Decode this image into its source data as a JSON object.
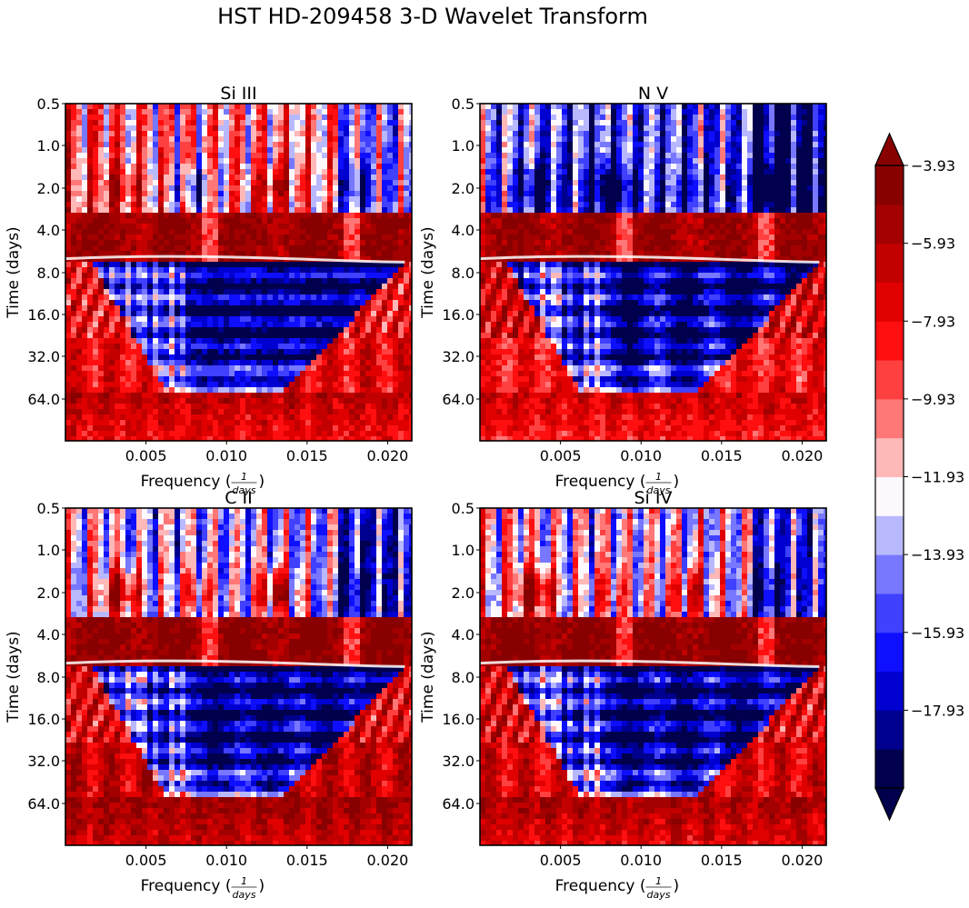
{
  "chart_data": {
    "type": "heatmap",
    "title": "HST HD-209458 3-D Wavelet Transform",
    "panels": [
      {
        "title": "Si III",
        "variant": "siiii"
      },
      {
        "title": "N V",
        "variant": "nv"
      },
      {
        "title": "C II",
        "variant": "cii"
      },
      {
        "title": "Si IV",
        "variant": "siiv"
      }
    ],
    "xlabel_prefix": "Frequency (",
    "xlabel_num": "1",
    "xlabel_den": "days",
    "xlabel_suffix": ")",
    "ylabel": "Time (days)",
    "x_ticks": [
      0.005,
      0.01,
      0.015,
      0.02
    ],
    "x_tick_labels": [
      "0.005",
      "0.010",
      "0.015",
      "0.020"
    ],
    "xlim": [
      0.0,
      0.0215
    ],
    "y_ticks": [
      "0.5",
      "1.0",
      "2.0",
      "4.0",
      "8.0",
      "16.0",
      "32.0",
      "64.0"
    ],
    "y_scale": "log2",
    "colorbar": {
      "levels": [
        -19.93,
        -18.93,
        -17.93,
        -16.93,
        -15.93,
        -14.93,
        -13.93,
        -12.93,
        -11.93,
        -10.93,
        -9.93,
        -8.93,
        -7.93,
        -6.93,
        -5.93,
        -4.93,
        -3.93
      ],
      "ticks": [
        -3.93,
        -5.93,
        -7.93,
        -9.93,
        -11.93,
        -13.93,
        -15.93,
        -17.93
      ],
      "tick_labels": [
        "−3.93",
        "−5.93",
        "−7.93",
        "−9.93",
        "−11.93",
        "−13.93",
        "−15.93",
        "−17.93"
      ],
      "extend": "both",
      "colormap": "seismic",
      "colors": [
        "#00004c",
        "#00008e",
        "#0000d0",
        "#0f0fff",
        "#4040ff",
        "#7777ff",
        "#b8b8ff",
        "#fdf8fb",
        "#ffb8b8",
        "#ff7777",
        "#ff4040",
        "#ff0f0f",
        "#e00000",
        "#c20000",
        "#a30000",
        "#880000"
      ]
    }
  }
}
